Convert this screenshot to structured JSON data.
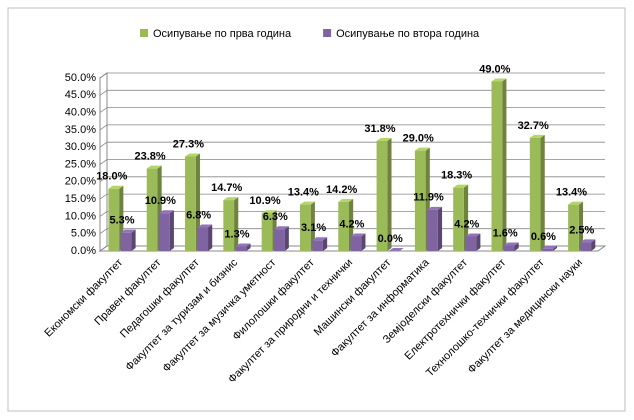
{
  "chart_data": {
    "type": "bar3d",
    "categories": [
      "Економски факултет",
      "Правен факултет",
      "Педагошки факултет",
      "Факултет за туризам и бизнис",
      "Факултет за музичка уметност",
      "Филолошки факултет",
      "Факултет за природни и технички",
      "Машински факултет",
      "Факултет за информатика",
      "Земјоделски факултет",
      "Електротехнички факултет",
      "Технолошко-технички факултет",
      "Факултет за медицински науки"
    ],
    "series": [
      {
        "name": "Осипување по прва година",
        "color": "#9bbb59",
        "values": [
          18.0,
          23.8,
          27.3,
          14.7,
          10.9,
          13.4,
          14.2,
          31.8,
          29.0,
          18.3,
          49.0,
          32.7,
          13.4
        ],
        "value_labels": [
          "18.0%",
          "23.8%",
          "27.3%",
          "14.7%",
          "10.9%",
          "13.4%",
          "14.2%",
          "31.8%",
          "29.0%",
          "18.3%",
          "49.0%",
          "32.7%",
          "13.4%"
        ]
      },
      {
        "name": "Осипување по втора година",
        "color": "#8064a2",
        "values": [
          5.3,
          10.9,
          6.8,
          1.3,
          6.3,
          3.1,
          4.2,
          0.0,
          11.9,
          4.2,
          1.6,
          0.6,
          2.5
        ],
        "value_labels": [
          "5.3%",
          "10.9%",
          "6.8%",
          "1.3%",
          "6.3%",
          "3.1%",
          "4.2%",
          "0.0%",
          "11.9%",
          "4.2%",
          "1.6%",
          "0.6%",
          "2.5%"
        ]
      }
    ],
    "ylim": [
      0,
      50
    ],
    "yticks": [
      {
        "value": 0,
        "label": "0.0%"
      },
      {
        "value": 5,
        "label": "5.0%"
      },
      {
        "value": 10,
        "label": "10.0%"
      },
      {
        "value": 15,
        "label": "15.0%"
      },
      {
        "value": 20,
        "label": "20.0%"
      },
      {
        "value": 25,
        "label": "25.0%"
      },
      {
        "value": 30,
        "label": "30.0%"
      },
      {
        "value": 35,
        "label": "35.0%"
      },
      {
        "value": 40,
        "label": "40.0%"
      },
      {
        "value": 45,
        "label": "45.0%"
      },
      {
        "value": 50,
        "label": "50.0%"
      }
    ],
    "grid": true,
    "legend": "top"
  }
}
